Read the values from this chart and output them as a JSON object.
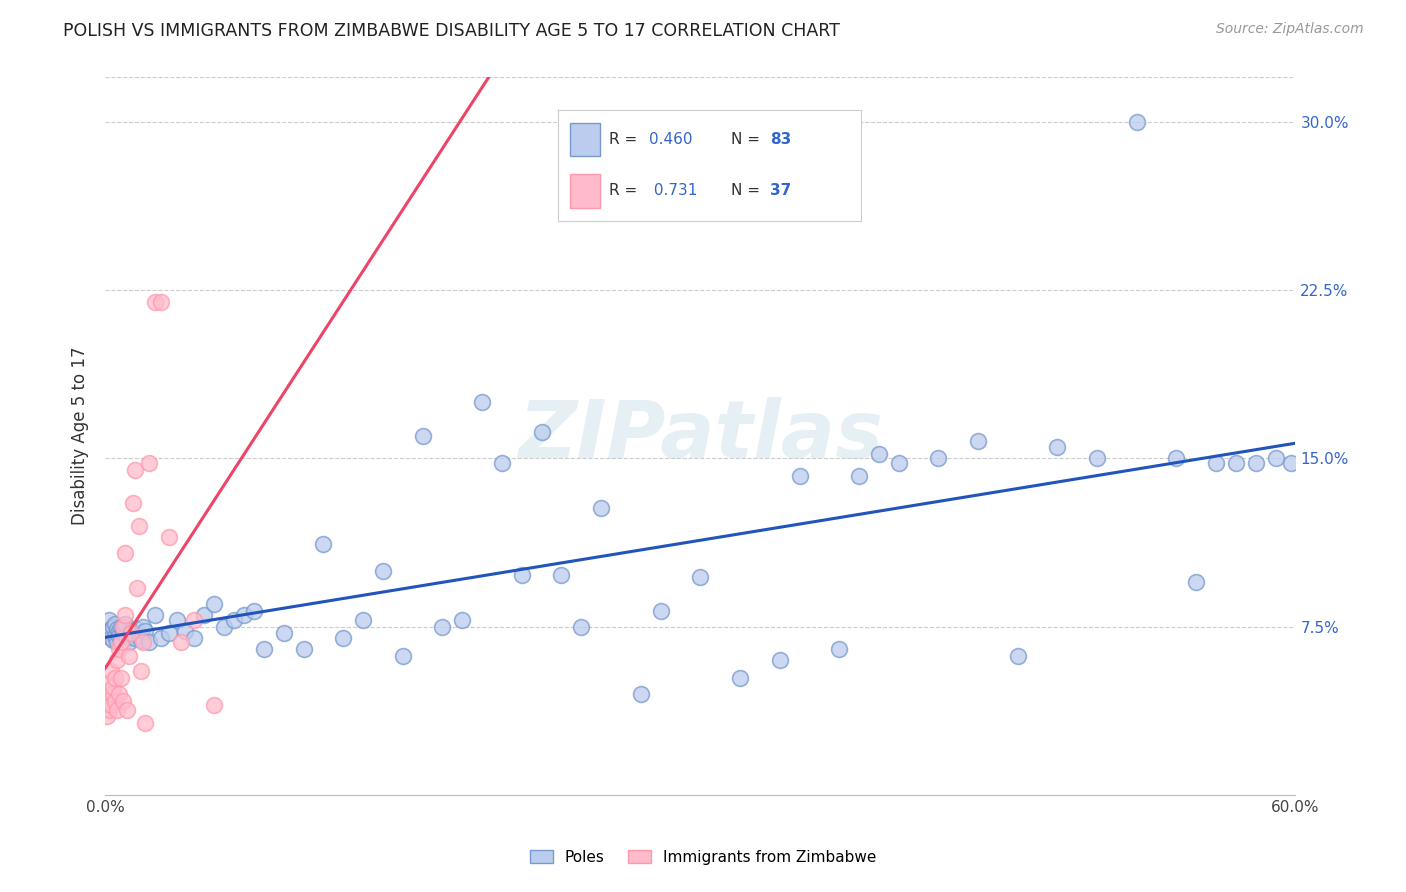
{
  "title": "POLISH VS IMMIGRANTS FROM ZIMBABWE DISABILITY AGE 5 TO 17 CORRELATION CHART",
  "source": "Source: ZipAtlas.com",
  "ylabel": "Disability Age 5 to 17",
  "xlim": [
    0.0,
    0.6
  ],
  "ylim": [
    0.0,
    0.32
  ],
  "ytick_positions": [
    0.0,
    0.075,
    0.15,
    0.225,
    0.3
  ],
  "ytick_labels": [
    "",
    "7.5%",
    "15.0%",
    "22.5%",
    "30.0%"
  ],
  "xtick_positions": [
    0.0,
    0.1,
    0.2,
    0.3,
    0.4,
    0.5,
    0.6
  ],
  "xtick_labels": [
    "0.0%",
    "",
    "",
    "",
    "",
    "",
    "60.0%"
  ],
  "legend_blue_r": "0.460",
  "legend_blue_n": "83",
  "legend_pink_r": "0.731",
  "legend_pink_n": "37",
  "blue_face_color": "#BBCCEE",
  "blue_edge_color": "#7799CC",
  "pink_face_color": "#FFBBCC",
  "pink_edge_color": "#FF99AA",
  "blue_line_color": "#2255BB",
  "pink_line_color": "#EE4466",
  "watermark": "ZIPatlas",
  "blue_scatter_x": [
    0.001,
    0.002,
    0.002,
    0.003,
    0.003,
    0.004,
    0.004,
    0.005,
    0.005,
    0.006,
    0.006,
    0.007,
    0.007,
    0.008,
    0.008,
    0.009,
    0.009,
    0.01,
    0.01,
    0.011,
    0.012,
    0.013,
    0.014,
    0.015,
    0.016,
    0.017,
    0.018,
    0.019,
    0.02,
    0.022,
    0.025,
    0.028,
    0.032,
    0.036,
    0.04,
    0.045,
    0.05,
    0.055,
    0.06,
    0.065,
    0.07,
    0.075,
    0.08,
    0.09,
    0.1,
    0.11,
    0.12,
    0.13,
    0.14,
    0.15,
    0.16,
    0.17,
    0.18,
    0.19,
    0.2,
    0.21,
    0.22,
    0.23,
    0.24,
    0.25,
    0.27,
    0.28,
    0.3,
    0.32,
    0.34,
    0.35,
    0.37,
    0.38,
    0.39,
    0.4,
    0.42,
    0.44,
    0.46,
    0.48,
    0.5,
    0.52,
    0.54,
    0.55,
    0.56,
    0.57,
    0.58,
    0.59,
    0.598
  ],
  "blue_scatter_y": [
    0.073,
    0.078,
    0.072,
    0.074,
    0.07,
    0.075,
    0.069,
    0.076,
    0.071,
    0.074,
    0.068,
    0.073,
    0.071,
    0.075,
    0.069,
    0.072,
    0.074,
    0.071,
    0.076,
    0.07,
    0.068,
    0.073,
    0.072,
    0.07,
    0.074,
    0.071,
    0.069,
    0.075,
    0.073,
    0.068,
    0.08,
    0.07,
    0.072,
    0.078,
    0.073,
    0.07,
    0.08,
    0.085,
    0.075,
    0.078,
    0.08,
    0.082,
    0.065,
    0.072,
    0.065,
    0.112,
    0.07,
    0.078,
    0.1,
    0.062,
    0.16,
    0.075,
    0.078,
    0.175,
    0.148,
    0.098,
    0.162,
    0.098,
    0.075,
    0.128,
    0.045,
    0.082,
    0.097,
    0.052,
    0.06,
    0.142,
    0.065,
    0.142,
    0.152,
    0.148,
    0.15,
    0.158,
    0.062,
    0.155,
    0.15,
    0.3,
    0.15,
    0.095,
    0.148,
    0.148,
    0.148,
    0.15,
    0.148
  ],
  "pink_scatter_x": [
    0.001,
    0.001,
    0.002,
    0.002,
    0.003,
    0.003,
    0.004,
    0.004,
    0.005,
    0.005,
    0.006,
    0.006,
    0.007,
    0.007,
    0.008,
    0.008,
    0.009,
    0.009,
    0.01,
    0.01,
    0.011,
    0.012,
    0.013,
    0.014,
    0.015,
    0.016,
    0.017,
    0.018,
    0.019,
    0.02,
    0.022,
    0.025,
    0.028,
    0.032,
    0.038,
    0.045,
    0.055
  ],
  "pink_scatter_y": [
    0.035,
    0.042,
    0.038,
    0.05,
    0.04,
    0.055,
    0.045,
    0.048,
    0.052,
    0.042,
    0.038,
    0.06,
    0.045,
    0.065,
    0.052,
    0.068,
    0.075,
    0.042,
    0.108,
    0.08,
    0.038,
    0.062,
    0.072,
    0.13,
    0.145,
    0.092,
    0.12,
    0.055,
    0.068,
    0.032,
    0.148,
    0.22,
    0.22,
    0.115,
    0.068,
    0.078,
    0.04
  ]
}
